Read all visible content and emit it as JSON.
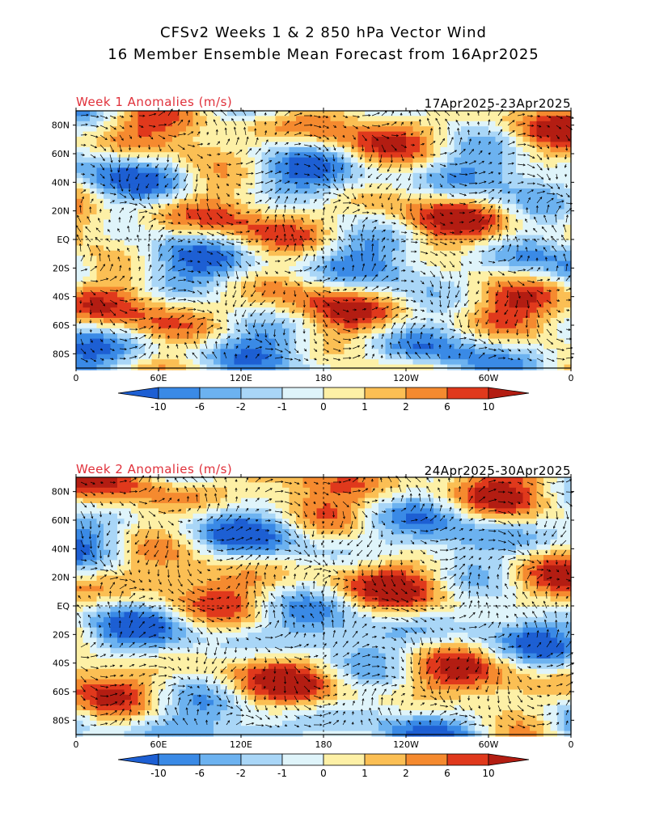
{
  "title": {
    "line1": "CFSv2 Weeks 1 & 2 850 hPa Vector Wind",
    "line2": "16 Member Ensemble Mean Forecast from 16Apr2025"
  },
  "panels": [
    {
      "label": "Week 1 Anomalies (m/s)",
      "dates": "17Apr2025-23Apr2025"
    },
    {
      "label": "Week 2 Anomalies (m/s)",
      "dates": "24Apr2025-30Apr2025"
    }
  ],
  "axes": {
    "lat_labels": [
      "80N",
      "60N",
      "40N",
      "20N",
      "EQ",
      "20S",
      "40S",
      "60S",
      "80S"
    ],
    "lat_values": [
      80,
      60,
      40,
      20,
      0,
      -20,
      -40,
      -60,
      -80
    ],
    "lon_labels": [
      "0",
      "60E",
      "120E",
      "180",
      "120W",
      "60W",
      "0"
    ],
    "lon_values": [
      0,
      60,
      120,
      180,
      240,
      300,
      360
    ]
  },
  "colorbar": {
    "labels": [
      "-10",
      "-6",
      "-2",
      "-1",
      "0",
      "1",
      "2",
      "6",
      "10"
    ],
    "colors": [
      "#1d5fd3",
      "#3a8ae6",
      "#6cb2f0",
      "#a9d6f7",
      "#dff4fa",
      "#fdf0a6",
      "#fbbf54",
      "#f58a2f",
      "#e0391c",
      "#b31d12"
    ]
  },
  "colors": {
    "title_red": "#e0303a",
    "grid": "#000000"
  }
}
